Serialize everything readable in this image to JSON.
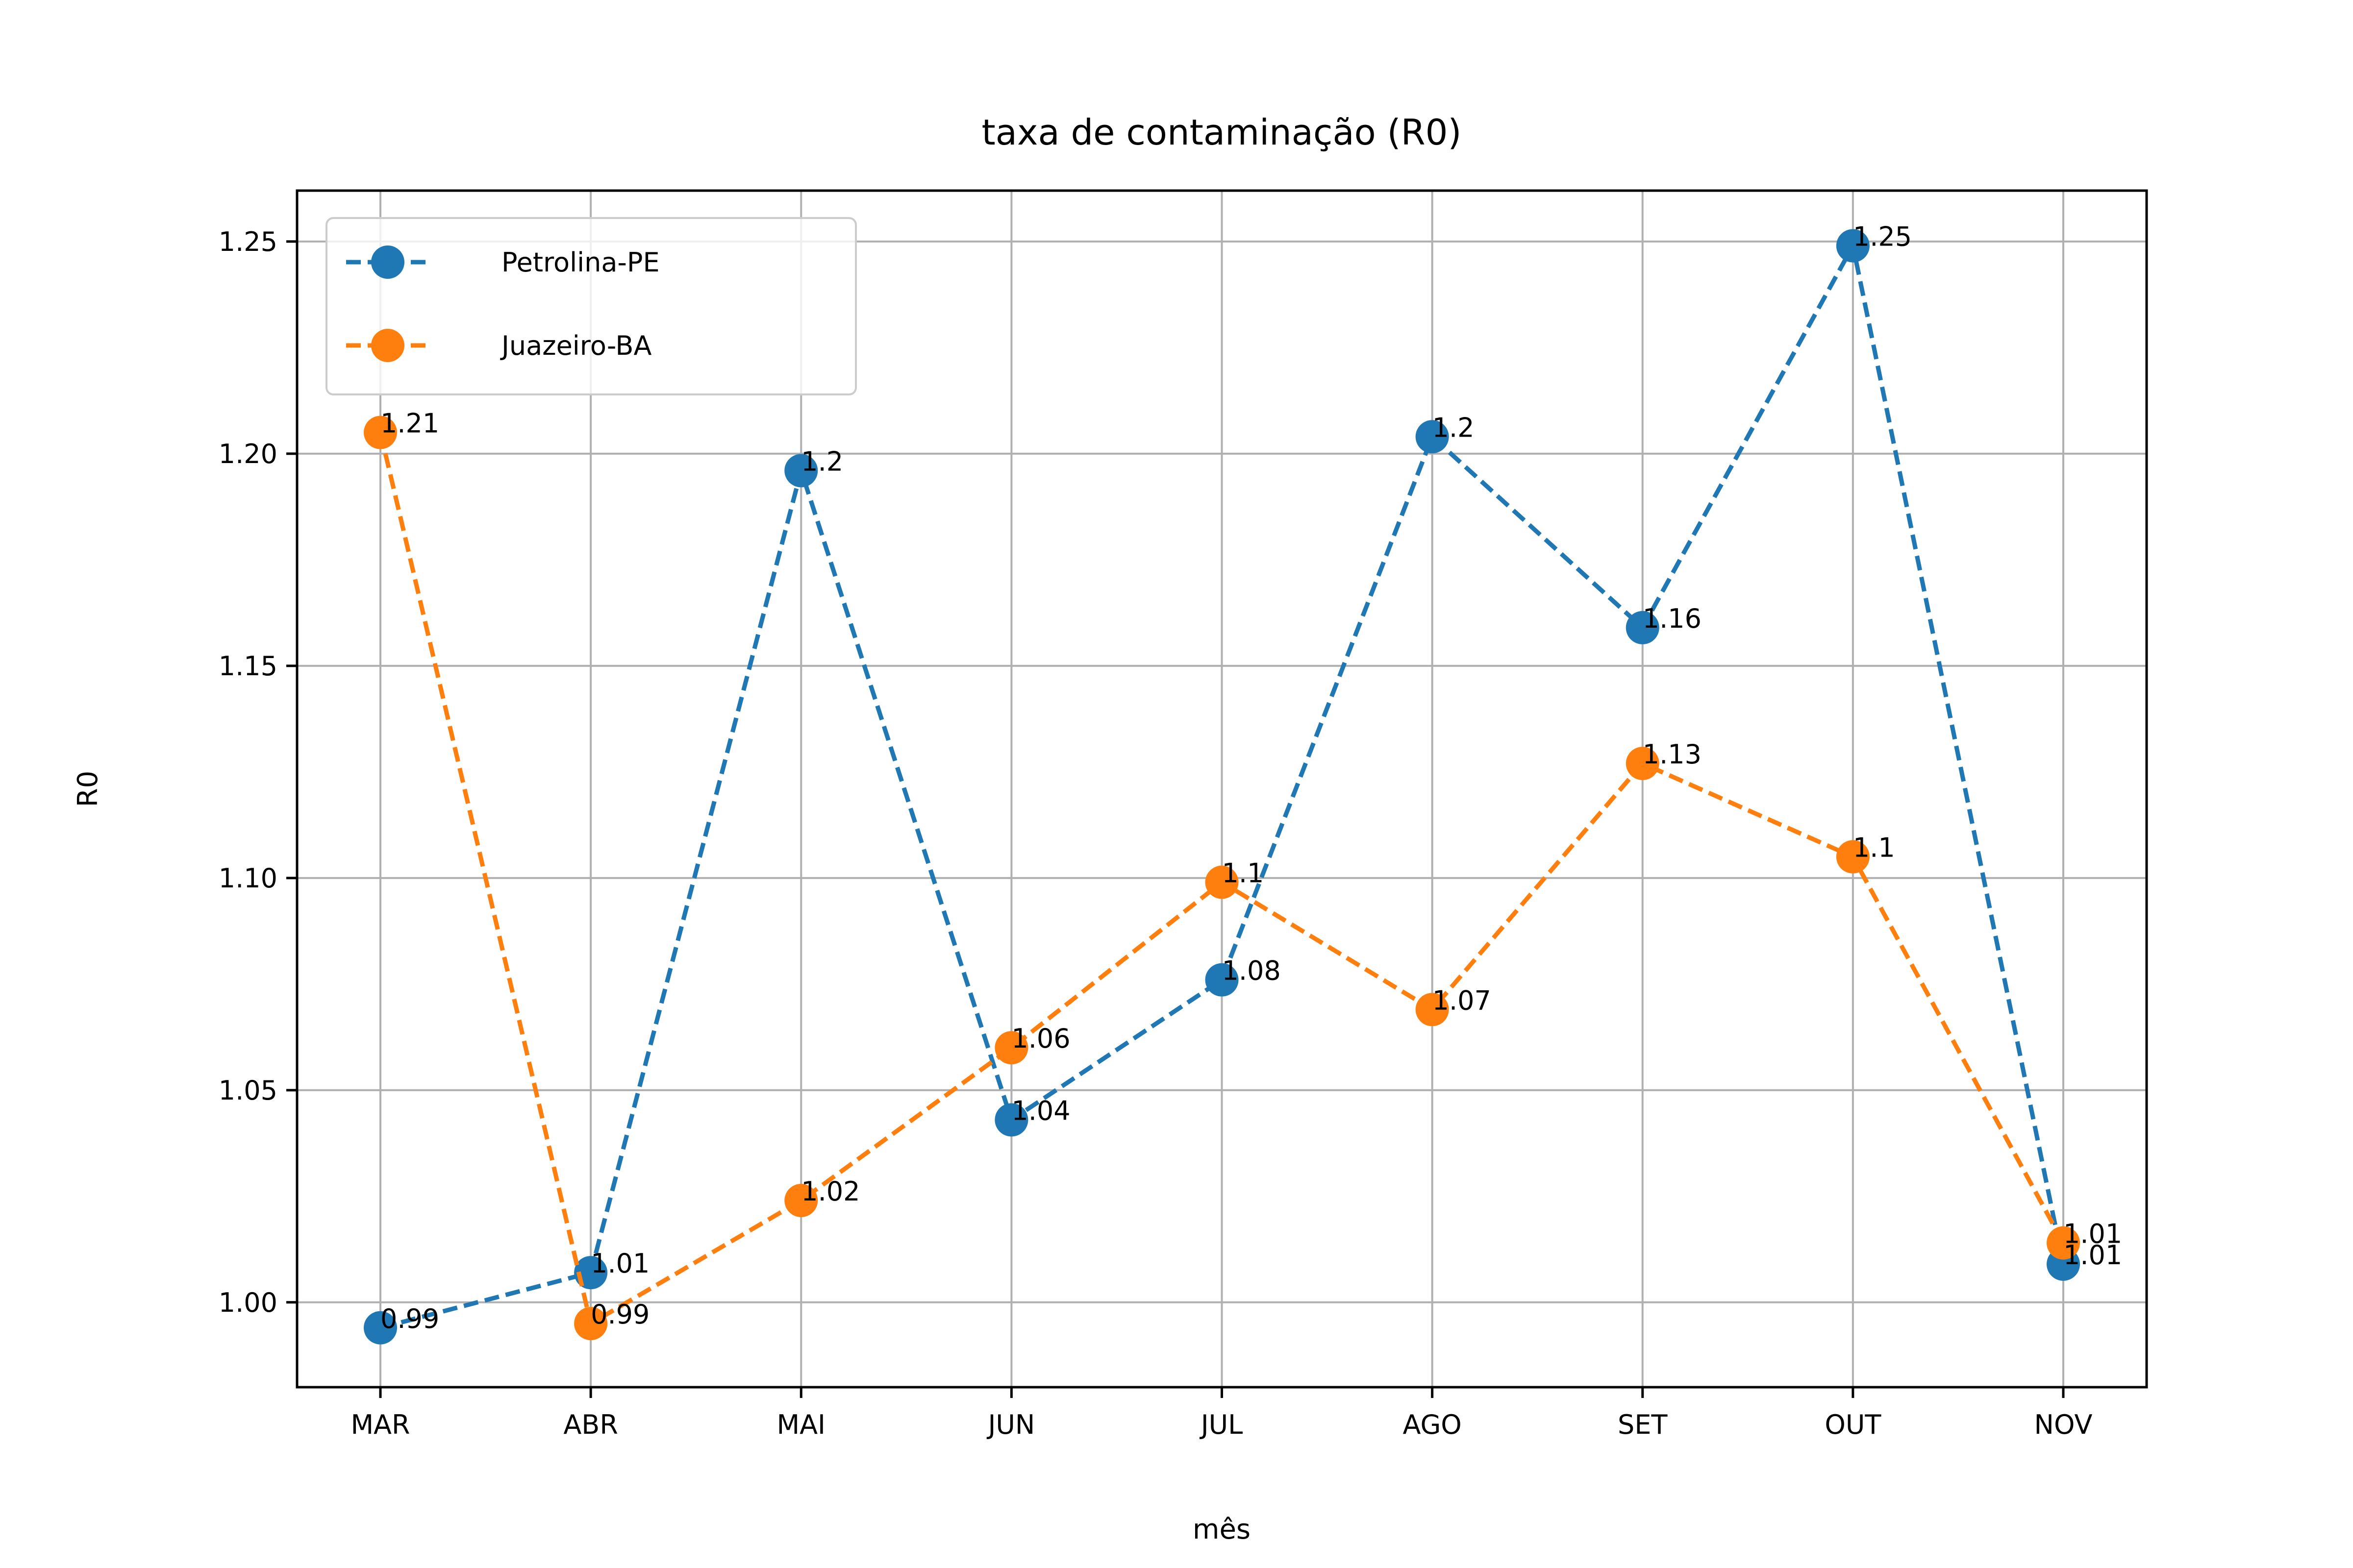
{
  "chart_data": {
    "type": "line",
    "title": "taxa de contaminação (R0)",
    "xlabel": "mês",
    "ylabel": "R0",
    "categories": [
      "MAR",
      "ABR",
      "MAI",
      "JUN",
      "JUL",
      "AGO",
      "SET",
      "OUT",
      "NOV"
    ],
    "ylim": [
      0.98,
      1.262
    ],
    "yticks": [
      "1.00",
      "1.05",
      "1.10",
      "1.15",
      "1.20",
      "1.25"
    ],
    "grid": true,
    "legend_position": "top-left",
    "series": [
      {
        "name": "Petrolina-PE",
        "color": "#1f77b4",
        "line_style": "dashed",
        "marker": "circle",
        "values": [
          0.994,
          1.007,
          1.196,
          1.043,
          1.076,
          1.204,
          1.159,
          1.249,
          1.009
        ],
        "labels": [
          "0.99",
          "1.01",
          "1.2",
          "1.04",
          "1.08",
          "1.2",
          "1.16",
          "1.25",
          "1.01"
        ]
      },
      {
        "name": "Juazeiro-BA",
        "color": "#ff7f0e",
        "line_style": "dashed",
        "marker": "circle",
        "values": [
          1.205,
          0.995,
          1.024,
          1.06,
          1.099,
          1.069,
          1.127,
          1.105,
          1.014
        ],
        "labels": [
          "1.21",
          "0.99",
          "1.02",
          "1.06",
          "1.1",
          "1.07",
          "1.13",
          "1.1",
          "1.01"
        ]
      }
    ]
  }
}
